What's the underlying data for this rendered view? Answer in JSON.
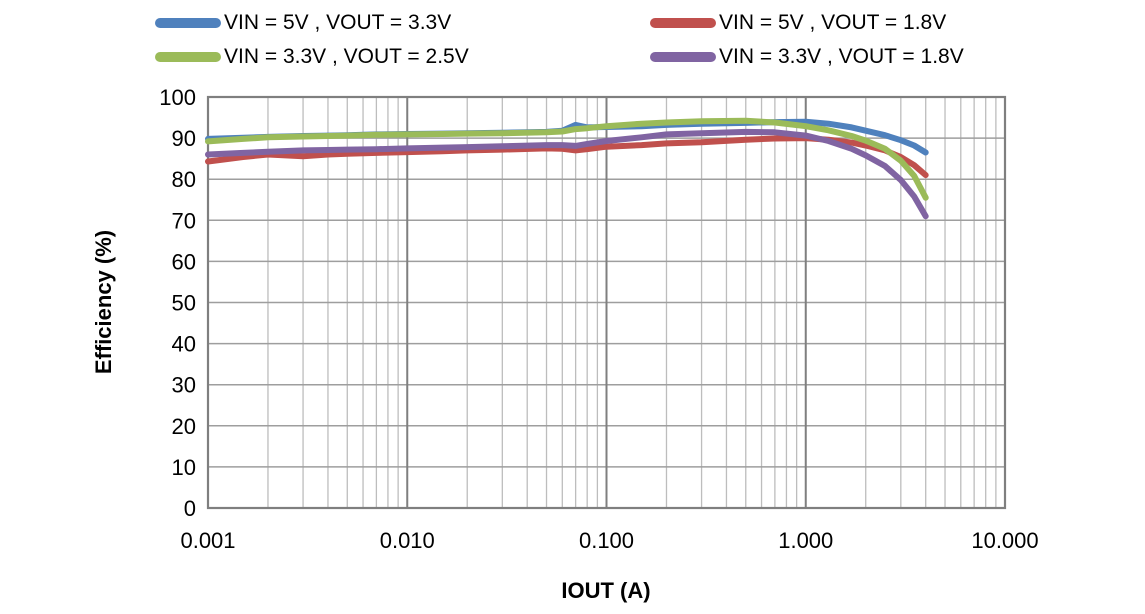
{
  "legend": {
    "items": [
      {
        "label": "VIN = 5V , VOUT = 3.3V",
        "color": "#4f81bd"
      },
      {
        "label": "VIN = 5V , VOUT = 1.8V",
        "color": "#c0504d"
      },
      {
        "label": "VIN = 3.3V , VOUT = 2.5V",
        "color": "#9bbb59"
      },
      {
        "label": "VIN = 3.3V , VOUT = 1.8V",
        "color": "#8064a2"
      }
    ]
  },
  "chart_data": {
    "type": "line",
    "title": "",
    "xlabel": "IOUT (A)",
    "ylabel": "Efficiency (%)",
    "x_scale": "log",
    "xlim": [
      0.001,
      10
    ],
    "ylim": [
      0,
      100
    ],
    "grid": "major-and-log-minor",
    "legend_position": "top",
    "x_ticks": [
      0.001,
      0.01,
      0.1,
      1,
      10
    ],
    "x_tick_labels": [
      "0.001",
      "0.010",
      "0.100",
      "1.000",
      "10.000"
    ],
    "y_ticks": [
      0,
      10,
      20,
      30,
      40,
      50,
      60,
      70,
      80,
      90,
      100
    ],
    "y_tick_labels": [
      "0",
      "10",
      "20",
      "30",
      "40",
      "50",
      "60",
      "70",
      "80",
      "90",
      "100"
    ],
    "x": [
      0.001,
      0.0015,
      0.002,
      0.003,
      0.004,
      0.005,
      0.007,
      0.01,
      0.015,
      0.02,
      0.03,
      0.05,
      0.06,
      0.07,
      0.08,
      0.1,
      0.15,
      0.2,
      0.3,
      0.5,
      0.7,
      1.0,
      1.3,
      1.7,
      2.0,
      2.5,
      3.0,
      3.5,
      4.0
    ],
    "series": [
      {
        "name": "VIN = 5V , VOUT = 3.3V",
        "color": "#4f81bd",
        "values": [
          89.8,
          90.1,
          90.3,
          90.5,
          90.6,
          90.7,
          90.9,
          91.0,
          91.1,
          91.2,
          91.3,
          91.5,
          91.8,
          93.2,
          92.6,
          92.7,
          92.9,
          93.2,
          93.5,
          93.7,
          93.9,
          94.0,
          93.5,
          92.6,
          91.8,
          90.7,
          89.5,
          88.2,
          86.5
        ]
      },
      {
        "name": "VIN = 5V , VOUT = 1.8V",
        "color": "#c0504d",
        "values": [
          84.3,
          85.4,
          86.0,
          85.6,
          86.0,
          86.2,
          86.4,
          86.6,
          86.8,
          87.0,
          87.2,
          87.5,
          87.4,
          87.0,
          87.3,
          87.9,
          88.3,
          88.7,
          89.0,
          89.6,
          89.9,
          90.0,
          89.6,
          88.9,
          88.2,
          87.0,
          85.4,
          83.4,
          81.0
        ]
      },
      {
        "name": "VIN = 3.3V , VOUT = 2.5V",
        "color": "#9bbb59",
        "values": [
          89.2,
          89.8,
          90.2,
          90.4,
          90.5,
          90.6,
          90.8,
          90.9,
          91.0,
          91.1,
          91.2,
          91.4,
          91.6,
          92.2,
          92.4,
          92.9,
          93.5,
          93.8,
          94.1,
          94.2,
          93.8,
          92.9,
          91.9,
          90.5,
          89.4,
          87.4,
          84.5,
          80.8,
          75.5
        ]
      },
      {
        "name": "VIN = 3.3V , VOUT = 1.8V",
        "color": "#8064a2",
        "values": [
          86.0,
          86.4,
          86.7,
          87.0,
          87.1,
          87.2,
          87.3,
          87.5,
          87.7,
          87.8,
          88.0,
          88.3,
          88.3,
          88.1,
          88.6,
          89.3,
          90.2,
          90.9,
          91.2,
          91.5,
          91.4,
          90.6,
          89.3,
          87.4,
          85.8,
          83.2,
          79.8,
          75.8,
          71.0
        ]
      }
    ]
  },
  "style_colors": {
    "grid_minor": "#bdbdbd",
    "grid_major": "#7f7f7f",
    "grid_horizontal": "#9e9e9e",
    "plot_border": "#7f7f7f",
    "text": "#000000"
  }
}
